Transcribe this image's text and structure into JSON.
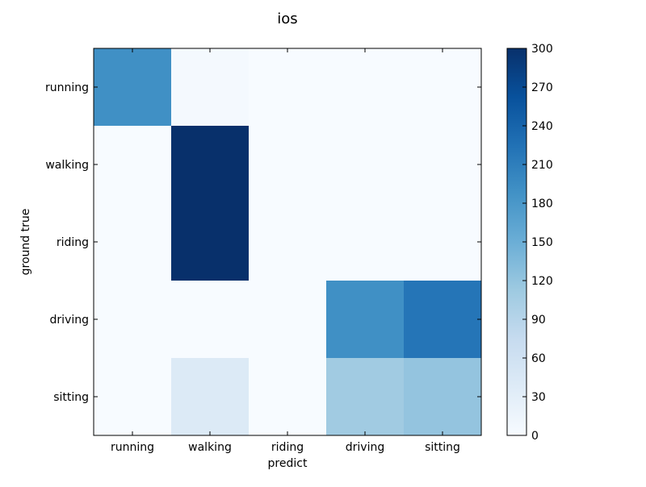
{
  "chart_data": {
    "type": "heatmap",
    "title": "ios",
    "xlabel": "predict",
    "ylabel": "ground true",
    "x_categories": [
      "running",
      "walking",
      "riding",
      "driving",
      "sitting"
    ],
    "y_categories": [
      "running",
      "walking",
      "riding",
      "driving",
      "sitting"
    ],
    "values": [
      [
        190,
        5,
        0,
        0,
        0
      ],
      [
        0,
        300,
        0,
        0,
        0
      ],
      [
        0,
        300,
        0,
        0,
        0
      ],
      [
        0,
        0,
        0,
        190,
        220
      ],
      [
        0,
        40,
        0,
        110,
        120
      ]
    ],
    "colorbar": {
      "range": [
        0,
        300
      ],
      "ticks": [
        0,
        30,
        60,
        90,
        120,
        150,
        180,
        210,
        240,
        270,
        300
      ]
    },
    "colormap": "Blues",
    "grid": false,
    "legend": "colorbar-right"
  }
}
